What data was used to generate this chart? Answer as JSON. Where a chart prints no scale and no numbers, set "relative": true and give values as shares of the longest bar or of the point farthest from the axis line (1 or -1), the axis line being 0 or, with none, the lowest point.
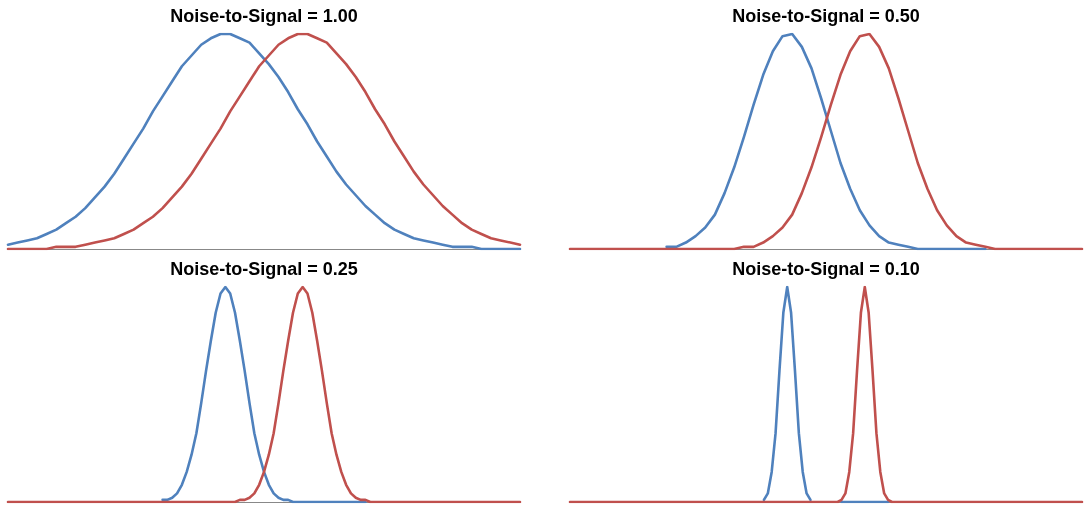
{
  "chart_data": [
    {
      "type": "line",
      "title": "Noise-to-Signal = 1.00",
      "relative": true,
      "marker": "none",
      "categories": [
        null,
        null,
        null,
        null,
        null,
        null,
        null,
        null,
        null,
        null,
        null,
        null,
        null,
        null,
        null,
        null,
        null,
        null,
        null,
        null,
        null,
        null,
        null,
        null,
        null,
        null,
        null,
        null,
        null,
        null,
        null,
        null,
        null,
        null,
        null,
        null,
        null,
        null,
        null,
        null,
        null,
        null,
        null,
        null,
        null,
        null,
        null,
        null,
        null,
        null,
        null,
        null,
        null,
        null
      ],
      "series": [
        {
          "color": "#4f81bd",
          "values": [
            0.02,
            0.03,
            0.04,
            0.05,
            0.07,
            0.09,
            0.12,
            0.15,
            0.19,
            0.24,
            0.29,
            0.35,
            0.42,
            0.49,
            0.56,
            0.64,
            0.71,
            0.78,
            0.85,
            0.9,
            0.95,
            0.98,
            1,
            1,
            0.98,
            0.96,
            0.91,
            0.86,
            0.8,
            0.73,
            0.65,
            0.58,
            0.5,
            0.43,
            0.36,
            0.3,
            0.25,
            0.2,
            0.16,
            0.12,
            0.09,
            0.07,
            0.05,
            0.04,
            0.03,
            0.02,
            0.01,
            0.01,
            0.01,
            0,
            0,
            0,
            0,
            0
          ]
        },
        {
          "color": "#c0504d",
          "values": [
            0,
            0,
            0,
            0,
            0,
            0.01,
            0.01,
            0.01,
            0.02,
            0.03,
            0.04,
            0.05,
            0.07,
            0.09,
            0.12,
            0.15,
            0.19,
            0.24,
            0.29,
            0.35,
            0.42,
            0.49,
            0.56,
            0.64,
            0.71,
            0.78,
            0.85,
            0.9,
            0.95,
            0.98,
            1,
            1,
            0.98,
            0.96,
            0.91,
            0.86,
            0.8,
            0.73,
            0.65,
            0.58,
            0.5,
            0.43,
            0.36,
            0.3,
            0.25,
            0.2,
            0.16,
            0.12,
            0.09,
            0.07,
            0.05,
            0.04,
            0.03,
            0.02
          ]
        }
      ]
    },
    {
      "type": "line",
      "title": "Noise-to-Signal = 0.50",
      "relative": true,
      "marker": "none",
      "categories": [
        null,
        null,
        null,
        null,
        null,
        null,
        null,
        null,
        null,
        null,
        null,
        null,
        null,
        null,
        null,
        null,
        null,
        null,
        null,
        null,
        null,
        null,
        null,
        null,
        null,
        null,
        null,
        null,
        null,
        null,
        null,
        null,
        null,
        null,
        null,
        null,
        null,
        null,
        null,
        null,
        null,
        null,
        null,
        null,
        null,
        null,
        null,
        null,
        null,
        null,
        null,
        null,
        null,
        null
      ],
      "series": [
        {
          "color": "#4f81bd",
          "values": [
            null,
            null,
            null,
            null,
            null,
            null,
            null,
            null,
            null,
            null,
            0.01,
            0.01,
            0.03,
            0.06,
            0.1,
            0.16,
            0.26,
            0.38,
            0.52,
            0.67,
            0.81,
            0.92,
            0.99,
            1,
            0.94,
            0.84,
            0.7,
            0.55,
            0.4,
            0.28,
            0.18,
            0.11,
            0.06,
            0.03,
            0.02,
            0.01,
            0,
            0,
            0,
            0,
            0,
            0,
            0,
            0,
            null,
            null,
            null,
            null,
            null,
            null,
            null,
            null,
            null,
            null
          ]
        },
        {
          "color": "#c0504d",
          "values": [
            0,
            0,
            0,
            0,
            0,
            0,
            0,
            0,
            0,
            0,
            0,
            0,
            0,
            0,
            0,
            0,
            0,
            0,
            0.01,
            0.01,
            0.03,
            0.06,
            0.1,
            0.16,
            0.26,
            0.38,
            0.52,
            0.67,
            0.81,
            0.92,
            0.99,
            1,
            0.94,
            0.84,
            0.7,
            0.55,
            0.4,
            0.28,
            0.18,
            0.11,
            0.06,
            0.03,
            0.02,
            0.01,
            0,
            0,
            0,
            0,
            0,
            0,
            0,
            0,
            0,
            0
          ]
        }
      ]
    },
    {
      "type": "line",
      "title": "Noise-to-Signal = 0.25",
      "relative": true,
      "marker": "none",
      "categories": [
        null,
        null,
        null,
        null,
        null,
        null,
        null,
        null,
        null,
        null,
        null,
        null,
        null,
        null,
        null,
        null,
        null,
        null,
        null,
        null,
        null,
        null,
        null,
        null,
        null,
        null,
        null,
        null,
        null,
        null,
        null,
        null,
        null,
        null,
        null,
        null,
        null,
        null,
        null,
        null,
        null,
        null,
        null,
        null,
        null,
        null,
        null,
        null,
        null,
        null,
        null,
        null,
        null,
        null,
        null,
        null,
        null,
        null,
        null,
        null,
        null,
        null,
        null,
        null,
        null,
        null,
        null,
        null,
        null,
        null,
        null,
        null,
        null,
        null,
        null,
        null,
        null,
        null,
        null,
        null,
        null,
        null,
        null,
        null,
        null,
        null,
        null,
        null,
        null,
        null,
        null,
        null,
        null,
        null,
        null,
        null,
        null,
        null,
        null,
        null,
        null,
        null,
        null,
        null,
        null,
        null,
        null
      ],
      "series": [
        {
          "color": "#4f81bd",
          "values": [
            null,
            null,
            null,
            null,
            null,
            null,
            null,
            null,
            null,
            null,
            null,
            null,
            null,
            null,
            null,
            null,
            null,
            null,
            null,
            null,
            null,
            null,
            null,
            null,
            null,
            null,
            null,
            null,
            null,
            null,
            null,
            null,
            0.01,
            0.01,
            0.02,
            0.04,
            0.08,
            0.14,
            0.22,
            0.32,
            0.46,
            0.61,
            0.75,
            0.88,
            0.97,
            1,
            0.97,
            0.88,
            0.75,
            0.61,
            0.46,
            0.32,
            0.22,
            0.14,
            0.08,
            0.04,
            0.02,
            0.01,
            0.01,
            0,
            0,
            0,
            0,
            0,
            0,
            0,
            0,
            0,
            0,
            0,
            0,
            0,
            0,
            0,
            0,
            null,
            null,
            null,
            null,
            null,
            null,
            null,
            null,
            null,
            null,
            null,
            null,
            null,
            null,
            null,
            null,
            null,
            null,
            null,
            null,
            null,
            null,
            null,
            null,
            null,
            null,
            null,
            null,
            null,
            null,
            null,
            null
          ]
        },
        {
          "color": "#c0504d",
          "values": [
            0,
            0,
            0,
            0,
            0,
            0,
            0,
            0,
            0,
            0,
            0,
            0,
            0,
            0,
            0,
            0,
            0,
            0,
            0,
            0,
            0,
            0,
            0,
            0,
            0,
            0,
            0,
            0,
            0,
            0,
            0,
            0,
            0,
            0,
            0,
            0,
            0,
            0,
            0,
            0,
            0,
            0,
            0,
            0,
            0,
            0,
            0,
            0,
            0.01,
            0.01,
            0.02,
            0.04,
            0.08,
            0.14,
            0.22,
            0.32,
            0.46,
            0.61,
            0.75,
            0.88,
            0.97,
            1,
            0.97,
            0.88,
            0.75,
            0.61,
            0.46,
            0.32,
            0.22,
            0.14,
            0.08,
            0.04,
            0.02,
            0.01,
            0.01,
            0,
            0,
            0,
            0,
            0,
            0,
            0,
            0,
            0,
            0,
            0,
            0,
            0,
            0,
            0,
            0,
            0,
            0,
            0,
            0,
            0,
            0,
            0,
            0,
            0,
            0,
            0,
            0,
            0,
            0,
            0,
            0
          ]
        }
      ]
    },
    {
      "type": "line",
      "title": "Noise-to-Signal = 0.10",
      "relative": true,
      "marker": "none",
      "categories": [
        null,
        null,
        null,
        null,
        null,
        null,
        null,
        null,
        null,
        null,
        null,
        null,
        null,
        null,
        null,
        null,
        null,
        null,
        null,
        null,
        null,
        null,
        null,
        null,
        null,
        null,
        null,
        null,
        null,
        null,
        null,
        null,
        null,
        null,
        null,
        null,
        null,
        null,
        null,
        null,
        null,
        null,
        null,
        null,
        null,
        null,
        null,
        null,
        null,
        null,
        null,
        null,
        null,
        null,
        null,
        null,
        null,
        null,
        null,
        null,
        null,
        null,
        null,
        null,
        null,
        null,
        null,
        null,
        null,
        null,
        null,
        null,
        null,
        null,
        null,
        null,
        null,
        null,
        null,
        null,
        null,
        null,
        null,
        null,
        null,
        null,
        null,
        null,
        null,
        null,
        null,
        null,
        null,
        null,
        null,
        null,
        null,
        null,
        null,
        null,
        null,
        null,
        null,
        null,
        null,
        null,
        null,
        null,
        null,
        null,
        null,
        null,
        null,
        null,
        null,
        null,
        null,
        null,
        null,
        null,
        null,
        null,
        null,
        null,
        null,
        null,
        null,
        null,
        null,
        null,
        null,
        null,
        null
      ],
      "series": [
        {
          "color": "#4f81bd",
          "values": [
            null,
            null,
            null,
            null,
            null,
            null,
            null,
            null,
            null,
            null,
            null,
            null,
            null,
            null,
            null,
            null,
            null,
            null,
            null,
            null,
            null,
            null,
            null,
            null,
            null,
            null,
            null,
            null,
            null,
            null,
            null,
            null,
            null,
            null,
            null,
            null,
            null,
            null,
            null,
            null,
            null,
            null,
            null,
            null,
            null,
            null,
            null,
            null,
            null,
            null,
            0.01,
            0.04,
            0.14,
            0.32,
            0.61,
            0.88,
            1,
            0.88,
            0.61,
            0.32,
            0.14,
            0.04,
            0.01,
            null,
            null,
            null,
            null,
            null,
            null,
            null,
            0,
            0,
            0,
            0,
            0,
            0,
            0,
            0,
            0,
            0,
            0,
            0,
            0,
            null,
            null,
            null,
            null,
            null,
            null,
            null,
            null,
            null,
            null,
            null,
            null,
            null,
            null,
            null,
            null,
            null,
            null,
            null,
            null,
            null,
            null,
            null,
            null,
            null,
            null,
            null,
            null,
            null,
            null,
            null,
            null,
            null,
            null,
            null,
            null,
            null,
            null,
            null,
            null,
            null,
            null,
            null,
            null,
            null,
            null,
            null,
            null,
            null,
            null
          ]
        },
        {
          "color": "#c0504d",
          "values": [
            0,
            0,
            0,
            0,
            0,
            0,
            0,
            0,
            0,
            0,
            0,
            0,
            0,
            0,
            0,
            0,
            0,
            0,
            0,
            0,
            0,
            0,
            0,
            0,
            0,
            0,
            0,
            0,
            0,
            0,
            0,
            0,
            0,
            0,
            0,
            0,
            0,
            0,
            0,
            0,
            0,
            0,
            0,
            0,
            0,
            0,
            0,
            0,
            0,
            0,
            0,
            0,
            0,
            0,
            0,
            0,
            0,
            0,
            0,
            0,
            0,
            0,
            0,
            0,
            0,
            0,
            0,
            0,
            0,
            0,
            0.01,
            0.04,
            0.14,
            0.32,
            0.61,
            0.88,
            1,
            0.88,
            0.61,
            0.32,
            0.14,
            0.04,
            0.01,
            0,
            0,
            0,
            0,
            0,
            0,
            0,
            0,
            0,
            0,
            0,
            0,
            0,
            0,
            0,
            0,
            0,
            0,
            0,
            0,
            0,
            0,
            0,
            0,
            0,
            0,
            0,
            0,
            0,
            0,
            0,
            0,
            0,
            0,
            0,
            0,
            0,
            0,
            0,
            0,
            0,
            0,
            0,
            0,
            0,
            0,
            0,
            0,
            0,
            0
          ]
        }
      ]
    }
  ]
}
